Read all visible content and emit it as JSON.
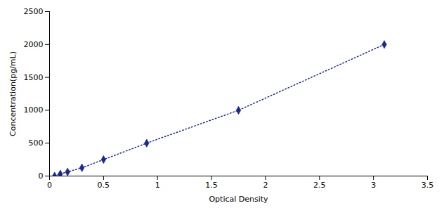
{
  "chart_data": {
    "type": "line",
    "xlabel": "Optical Density",
    "ylabel": "Concentration(pg/mL)",
    "x": [
      0.047,
      0.1,
      0.167,
      0.3,
      0.5,
      0.9,
      1.75,
      3.1
    ],
    "values": [
      0,
      31.25,
      62.5,
      125,
      250,
      500,
      1000,
      2000
    ],
    "color": "#1B2A8A",
    "marker": "diamond",
    "line_style": "dotted",
    "xlim": [
      0,
      3.5
    ],
    "ylim": [
      0,
      2500
    ],
    "xticks": [
      0,
      0.5,
      1,
      1.5,
      2,
      2.5,
      3,
      3.5
    ],
    "yticks": [
      0,
      500,
      1000,
      1500,
      2000,
      2500
    ],
    "grid": false
  }
}
